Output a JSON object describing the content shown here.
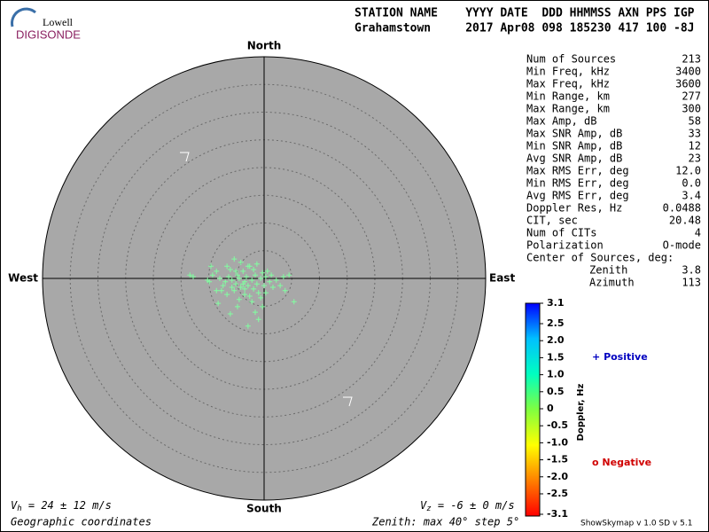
{
  "logo": {
    "top": "Lowell",
    "bottom": "DIGISONDE"
  },
  "header": {
    "labels": "STATION NAME    YYYY DATE  DDD HHMMSS AXN PPS IGP",
    "values": "Grahamstown     2017 Apr08 098 185230 417 100 -8J"
  },
  "stats": [
    [
      "Num of Sources",
      "213"
    ],
    [
      "Min Freq, kHz",
      "3400"
    ],
    [
      "Max Freq, kHz",
      "3600"
    ],
    [
      "Min Range, km",
      "277"
    ],
    [
      "Max Range, km",
      "300"
    ],
    [
      "Max Amp, dB",
      "58"
    ],
    [
      "Max SNR Amp, dB",
      "33"
    ],
    [
      "Min SNR Amp, dB",
      "12"
    ],
    [
      "Avg SNR Amp, dB",
      "23"
    ],
    [
      "Max RMS Err, deg",
      "12.0"
    ],
    [
      "Min RMS Err, deg",
      "0.0"
    ],
    [
      "Avg RMS Err, deg",
      "3.4"
    ],
    [
      "Doppler Res, Hz",
      "0.0488"
    ],
    [
      "CIT, sec",
      "20.48"
    ],
    [
      "Num of CITs",
      "4"
    ],
    [
      "Polarization",
      "O-mode"
    ]
  ],
  "center": {
    "title": "Center of Sources, deg:",
    "rows": [
      [
        "Zenith",
        "3.8"
      ],
      [
        "Azimuth",
        "113"
      ]
    ]
  },
  "chart_data": {
    "type": "skymap",
    "directions": {
      "north": "North",
      "south": "South",
      "east": "East",
      "west": "West"
    },
    "rlim": [
      0,
      40
    ],
    "rticks": [
      5,
      10,
      15,
      20,
      25,
      30,
      35
    ],
    "series": [
      {
        "name": "Positive",
        "symbol": "+",
        "color": "#80ffa0",
        "x": [
          -13.4,
          -12.8,
          -9.6,
          -9.3,
          -9.9,
          -8.6,
          -8.0,
          -7.4,
          -6.7,
          -6.1,
          -5.8,
          -5.4,
          -5.1,
          -4.8,
          -4.5,
          -4.2,
          -3.8,
          -3.5,
          -3.2,
          -2.9,
          -2.6,
          -2.2,
          -1.9,
          -1.6,
          -1.3,
          -1.0,
          -0.6,
          -0.3,
          0,
          0.3,
          0.6,
          1.0,
          1.3,
          1.6,
          2.2,
          2.9,
          3.5,
          4.5,
          5.4,
          3.8,
          -8.3,
          -6.1,
          -2.9,
          -1.6,
          -1.0,
          -4.5,
          -6.7,
          -7.7,
          -3.5,
          -2.2,
          -0.6,
          -5.4,
          -4.2,
          -1.3,
          -8.6,
          -10.2,
          0.3,
          -4.8,
          -2.9,
          -1.9,
          -3.5,
          -2.6,
          -0.3,
          -3.8,
          -6.4,
          -5.8,
          -7.0,
          -5.1
        ],
        "values": [
          0.6,
          0.3,
          2.2,
          0.6,
          -0.6,
          1.3,
          0,
          -1.3,
          2.2,
          1.6,
          -0.3,
          3.5,
          -1.0,
          0.6,
          0,
          -1.6,
          1.3,
          -0.6,
          0.3,
          -1.3,
          2.2,
          -0.3,
          -1.9,
          0.6,
          -1.0,
          -2.6,
          0,
          1.0,
          -1.3,
          0.3,
          1.3,
          -0.6,
          0.6,
          -1.6,
          -0.3,
          -1.3,
          0.3,
          0.6,
          -4.2,
          -2.2,
          -4.5,
          -6.4,
          -8.6,
          -6.1,
          -7.4,
          -3.8,
          -2.9,
          -2.2,
          -2.9,
          -4.2,
          -3.5,
          -2.2,
          2.9,
          2.6,
          -2.2,
          -0.3,
          -2.6,
          -5.1,
          2.2,
          1.6,
          -1.9,
          -3.2,
          -5.1,
          -1.0,
          0.3,
          -1.6,
          -0.6,
          1.3
        ]
      }
    ],
    "legend": {
      "positive": {
        "symbol": "+",
        "label": "Positive",
        "color": "#0000c0"
      },
      "negative": {
        "symbol": "o",
        "label": "Negative",
        "color": "#d00000"
      }
    },
    "colorbar": {
      "label": "Doppler, Hz",
      "clim": [
        -3.1,
        3.1
      ],
      "colors": [
        "#ff0000",
        "#ff8000",
        "#ffff00",
        "#80ff40",
        "#00ffc0",
        "#00c0ff",
        "#0000ff"
      ],
      "ticks": [
        3.1,
        2.5,
        {
          "value": 2,
          "label": "2.0"
        },
        1.5,
        {
          "value": 1,
          "label": "1.0"
        },
        0.5,
        0,
        -0.5,
        {
          "value": -1,
          "label": "-1.0"
        },
        -1.5,
        {
          "value": -2,
          "label": "-2.0"
        },
        -2.5,
        -3.1
      ]
    }
  },
  "footer": {
    "vh": [
      "V",
      "h",
      " = 24 ± 12 m/s"
    ],
    "vz": [
      "V",
      "z",
      " = -6 ± 0 m/s"
    ],
    "coords": "Geographic coordinates",
    "zenith": "Zenith: max 40°  step 5°",
    "version": "ShowSkymap v 1.0  SD v 5.1"
  }
}
